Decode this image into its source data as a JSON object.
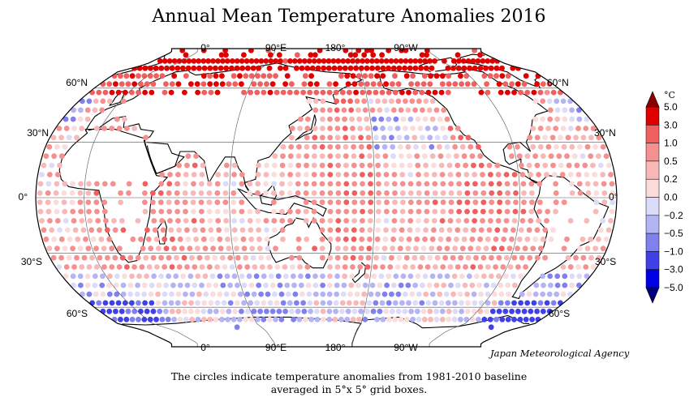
{
  "title": "Annual Mean Temperature Anomalies 2016",
  "credit": "Japan Meteorological Agency",
  "caption_line1": "The circles indicate temperature anomalies from 1981-2010 baseline",
  "caption_line2": "averaged in 5°x 5° grid boxes.",
  "longitude_labels": [
    "0°",
    "90°E",
    "180°",
    "90°W"
  ],
  "latitude_labels_left": [
    "60°N",
    "30°N",
    "0°",
    "30°S",
    "60°S"
  ],
  "latitude_labels_right": [
    "60°N",
    "30°N",
    "0°",
    "30°S",
    "60°S"
  ],
  "colorbar": {
    "unit": "°C",
    "ticks": [
      "5.0",
      "3.0",
      "1.0",
      "0.5",
      "0.2",
      "0.0",
      "−0.2",
      "−0.5",
      "−1.0",
      "−3.0",
      "−5.0"
    ],
    "colors": [
      "#e00000",
      "#f06060",
      "#f59090",
      "#f8b8b8",
      "#fbdcdc",
      "#dcdcf8",
      "#b4b4f4",
      "#8080ee",
      "#4040e8",
      "#0000e6"
    ],
    "top_triangle_color": "#8b0000",
    "bottom_triangle_color": "#00007a"
  },
  "chart_data": {
    "type": "map",
    "projection": "Robinson",
    "grid_resolution": "5° x 5°",
    "value_unit": "°C",
    "baseline": "1981-2010"
  }
}
